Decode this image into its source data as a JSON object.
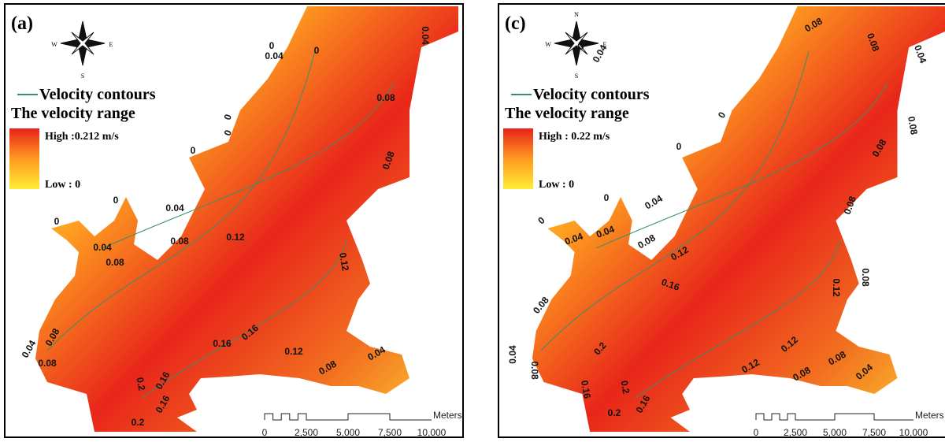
{
  "panels": [
    {
      "label": "(a)",
      "compass": {
        "w": "W",
        "e": "E",
        "s": "S"
      },
      "legend": {
        "contour": "Velocity contours",
        "range_title": "The velocity range",
        "high": "High :0.212 m/s",
        "low": "Low : 0"
      },
      "contour_labels": [
        "0",
        "0.04",
        "0",
        "0.04",
        "0.08",
        "0",
        "0",
        "0",
        "0.08",
        "0",
        "0.04",
        "0",
        "0.04",
        "0.08",
        "0.12",
        "0.08",
        "0.12",
        "0.04",
        "0.08",
        "0.08",
        "0.16",
        "0.16",
        "0.12",
        "0.08",
        "0.04",
        "0.2",
        "0.16",
        "0.16",
        "0.2"
      ],
      "scale_bar": {
        "unit": "Meters",
        "ticks": [
          "0",
          "2,500",
          "5,000",
          "7,500",
          "10,000"
        ]
      }
    },
    {
      "label": "(c)",
      "compass": {
        "n": "N",
        "w": "W",
        "e": "E",
        "s": "S"
      },
      "legend": {
        "contour": "Velocity contours",
        "range_title": "The velocity range",
        "high": "High : 0.22 m/s",
        "low": "Low : 0"
      },
      "contour_labels": [
        "0",
        "0.04",
        "0.08",
        "0.08",
        "0.04",
        "0",
        "0.08",
        "0.08",
        "0",
        "0.08",
        "0.04",
        "0",
        "0",
        "0.04",
        "0.04",
        "0.08",
        "0.12",
        "0.16",
        "0.08",
        "0.12",
        "0.08",
        "0.04",
        "0.08",
        "0.2",
        "0.12",
        "0.12",
        "0.08",
        "0.08",
        "0.04",
        "0.16",
        "0.2",
        "0.16",
        "0.2"
      ],
      "scale_bar": {
        "unit": "Meters",
        "ticks": [
          "0",
          "2,500",
          "5,000",
          "7,500",
          "10,000"
        ]
      }
    }
  ]
}
